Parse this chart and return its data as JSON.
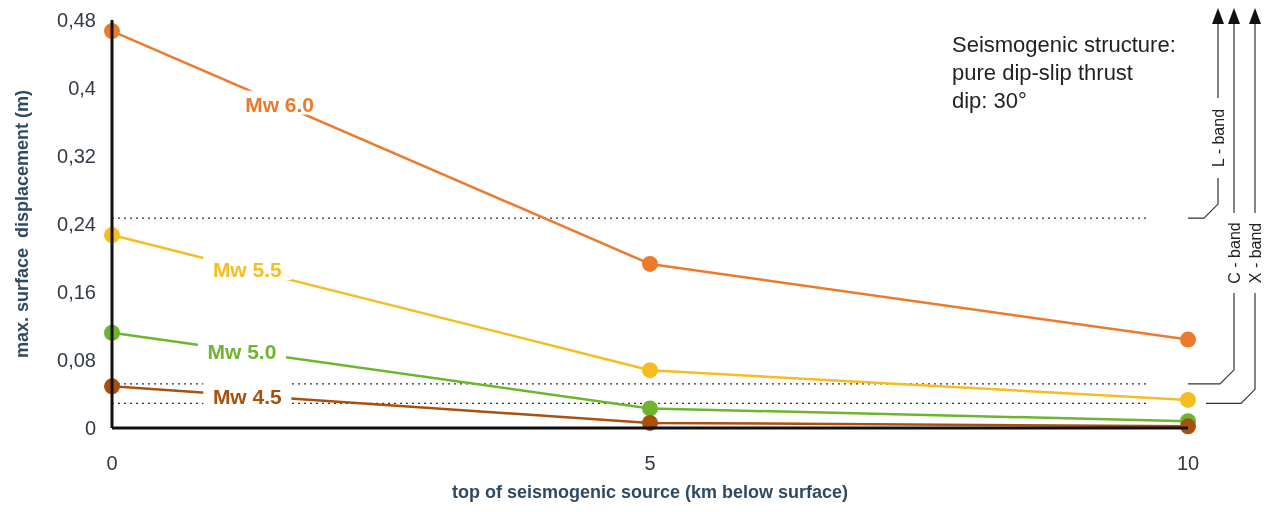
{
  "chart_data": {
    "type": "line",
    "xlabel": "top of seismogenic source (km below surface)",
    "ylabel": "max. surface  displacement (m)",
    "x": [
      0,
      5,
      10
    ],
    "xlim": [
      0,
      10
    ],
    "xticks": [
      0,
      5,
      10
    ],
    "ylim": [
      0,
      0.48
    ],
    "yticks": [
      0,
      {
        "value": 0.08,
        "label": "0,08"
      },
      {
        "value": 0.16,
        "label": "0,16"
      },
      {
        "value": 0.24,
        "label": "0,24"
      },
      {
        "value": 0.32,
        "label": "0,32"
      },
      {
        "value": 0.4,
        "label": "0,4"
      },
      {
        "value": 0.48,
        "label": "0,48"
      }
    ],
    "grid": false,
    "marker": "circle",
    "line_style": "solid",
    "series": [
      {
        "name": "Mw 6.0",
        "color": "#ec7a2c",
        "values": [
          0.467,
          0.193,
          0.104
        ]
      },
      {
        "name": "Mw 5.5",
        "color": "#f5bd1f",
        "values": [
          0.227,
          0.068,
          0.033
        ]
      },
      {
        "name": "Mw 5.0",
        "color": "#6cb52d",
        "values": [
          0.112,
          0.023,
          0.008
        ]
      },
      {
        "name": "Mw 4.5",
        "color": "#a9500f",
        "values": [
          0.049,
          0.006,
          0.002
        ]
      }
    ],
    "ref_lines": [
      {
        "axis": "y",
        "value": 0.247,
        "color": "#333333",
        "line_style": "dotted"
      },
      {
        "axis": "y",
        "value": 0.052,
        "color": "#333333",
        "line_style": "dotted"
      },
      {
        "axis": "y",
        "value": 0.029,
        "color": "#333333",
        "line_style": "dotted"
      }
    ],
    "annotations": [
      "Seismogenic structure:",
      "pure dip-slip thrust",
      "dip: 30°",
      "L - band",
      "C - band",
      "X - band"
    ]
  }
}
